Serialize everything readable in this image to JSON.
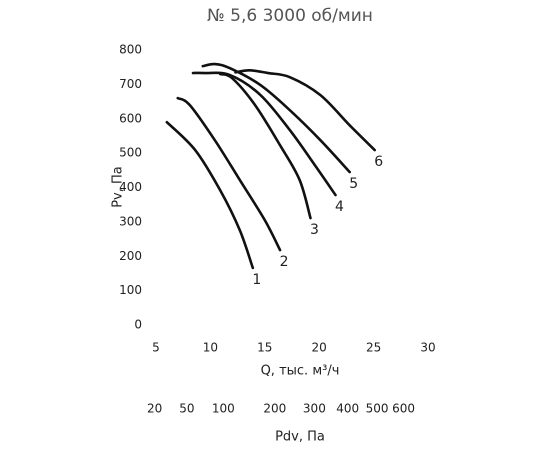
{
  "chart_data": {
    "type": "line",
    "title": "№ 5,6 3000 об/мин",
    "xlabel": "Q, тыс. м³/ч",
    "ylabel": "Pv, Па",
    "x2label": "Pdv, Па",
    "xlim": [
      5,
      30
    ],
    "xticks": [
      5,
      10,
      15,
      20,
      25,
      30
    ],
    "ylim": [
      0,
      800
    ],
    "yticks": [
      0,
      100,
      200,
      300,
      400,
      500,
      600,
      700,
      800
    ],
    "x2scale": "sqrt",
    "x2lim": [
      21,
      700
    ],
    "x2ticks": [
      20,
      50,
      100,
      200,
      300,
      400,
      500,
      600
    ],
    "grid": false,
    "series": [
      {
        "name": "1",
        "color": "#111111",
        "x": [
          6.0,
          8.6,
          10.9,
          12.7,
          13.9
        ],
        "values": [
          590,
          509,
          392,
          276,
          166
        ]
      },
      {
        "name": "2",
        "color": "#111111",
        "x": [
          7.0,
          8.1,
          10.4,
          12.7,
          15.0,
          16.4
        ],
        "values": [
          660,
          640,
          538,
          422,
          305,
          218
        ]
      },
      {
        "name": "3",
        "color": "#111111",
        "x": [
          10.9,
          12.0,
          14.1,
          16.4,
          18.2,
          19.2
        ],
        "values": [
          730,
          718,
          640,
          523,
          422,
          311
        ]
      },
      {
        "name": "4",
        "color": "#111111",
        "x": [
          8.4,
          9.5,
          11.8,
          14.6,
          17.3,
          19.6,
          21.5
        ],
        "values": [
          733,
          733,
          727,
          669,
          567,
          465,
          378
        ]
      },
      {
        "name": "5",
        "color": "#111111",
        "x": [
          9.3,
          10.4,
          11.8,
          14.6,
          17.3,
          20.1,
          22.8
        ],
        "values": [
          753,
          759,
          747,
          698,
          625,
          538,
          445
        ]
      },
      {
        "name": "6",
        "color": "#111111",
        "x": [
          12.3,
          13.6,
          15.3,
          17.3,
          20.1,
          22.8,
          25.1
        ],
        "values": [
          735,
          741,
          733,
          721,
          669,
          581,
          509
        ]
      }
    ]
  }
}
